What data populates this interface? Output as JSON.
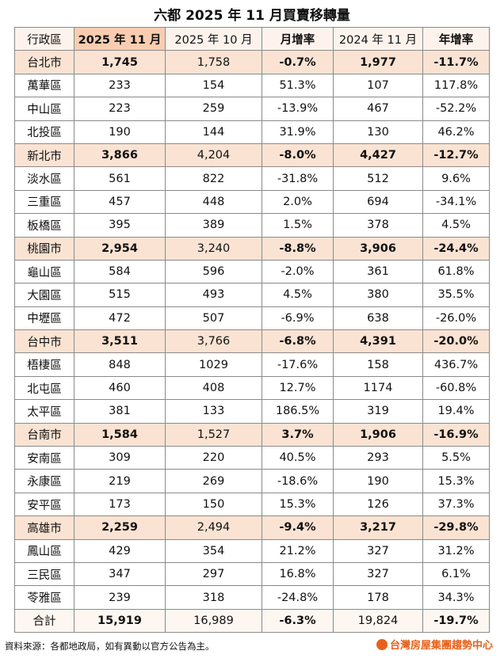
{
  "title": "六都 2025 年 11 月買賣移轉量",
  "table": {
    "header": [
      "行政區",
      "2025 年 11 月",
      "2025 年 10 月",
      "月增率",
      "2024 年 11 月",
      "年增率"
    ],
    "groups": [
      {
        "city": [
          "台北市",
          "1,745",
          "1,758",
          "-0.7%",
          "1,977",
          "-11.7%"
        ],
        "districts": [
          [
            "萬華區",
            "233",
            "154",
            "51.3%",
            "107",
            "117.8%"
          ],
          [
            "中山區",
            "223",
            "259",
            "-13.9%",
            "467",
            "-52.2%"
          ],
          [
            "北投區",
            "190",
            "144",
            "31.9%",
            "130",
            "46.2%"
          ]
        ]
      },
      {
        "city": [
          "新北市",
          "3,866",
          "4,204",
          "-8.0%",
          "4,427",
          "-12.7%"
        ],
        "districts": [
          [
            "淡水區",
            "561",
            "822",
            "-31.8%",
            "512",
            "9.6%"
          ],
          [
            "三重區",
            "457",
            "448",
            "2.0%",
            "694",
            "-34.1%"
          ],
          [
            "板橋區",
            "395",
            "389",
            "1.5%",
            "378",
            "4.5%"
          ]
        ]
      },
      {
        "city": [
          "桃園市",
          "2,954",
          "3,240",
          "-8.8%",
          "3,906",
          "-24.4%"
        ],
        "districts": [
          [
            "龜山區",
            "584",
            "596",
            "-2.0%",
            "361",
            "61.8%"
          ],
          [
            "大園區",
            "515",
            "493",
            "4.5%",
            "380",
            "35.5%"
          ],
          [
            "中壢區",
            "472",
            "507",
            "-6.9%",
            "638",
            "-26.0%"
          ]
        ]
      },
      {
        "city": [
          "台中市",
          "3,511",
          "3,766",
          "-6.8%",
          "4,391",
          "-20.0%"
        ],
        "districts": [
          [
            "梧棲區",
            "848",
            "1029",
            "-17.6%",
            "158",
            "436.7%"
          ],
          [
            "北屯區",
            "460",
            "408",
            "12.7%",
            "1174",
            "-60.8%"
          ],
          [
            "太平區",
            "381",
            "133",
            "186.5%",
            "319",
            "19.4%"
          ]
        ]
      },
      {
        "city": [
          "台南市",
          "1,584",
          "1,527",
          "3.7%",
          "1,906",
          "-16.9%"
        ],
        "districts": [
          [
            "安南區",
            "309",
            "220",
            "40.5%",
            "293",
            "5.5%"
          ],
          [
            "永康區",
            "219",
            "269",
            "-18.6%",
            "190",
            "15.3%"
          ],
          [
            "安平區",
            "173",
            "150",
            "15.3%",
            "126",
            "37.3%"
          ]
        ]
      },
      {
        "city": [
          "高雄市",
          "2,259",
          "2,494",
          "-9.4%",
          "3,217",
          "-29.8%"
        ],
        "districts": [
          [
            "鳳山區",
            "429",
            "354",
            "21.2%",
            "327",
            "31.2%"
          ],
          [
            "三民區",
            "347",
            "297",
            "16.8%",
            "327",
            "6.1%"
          ],
          [
            "苓雅區",
            "239",
            "318",
            "-24.8%",
            "178",
            "34.3%"
          ]
        ]
      }
    ],
    "total": [
      "合計",
      "15,919",
      "16,989",
      "-6.3%",
      "19,824",
      "-19.7%"
    ]
  },
  "footer": {
    "source": "資料來源：各都地政局，如有異動以官方公告為主。",
    "logo": "台灣房屋集團趨勢中心"
  }
}
